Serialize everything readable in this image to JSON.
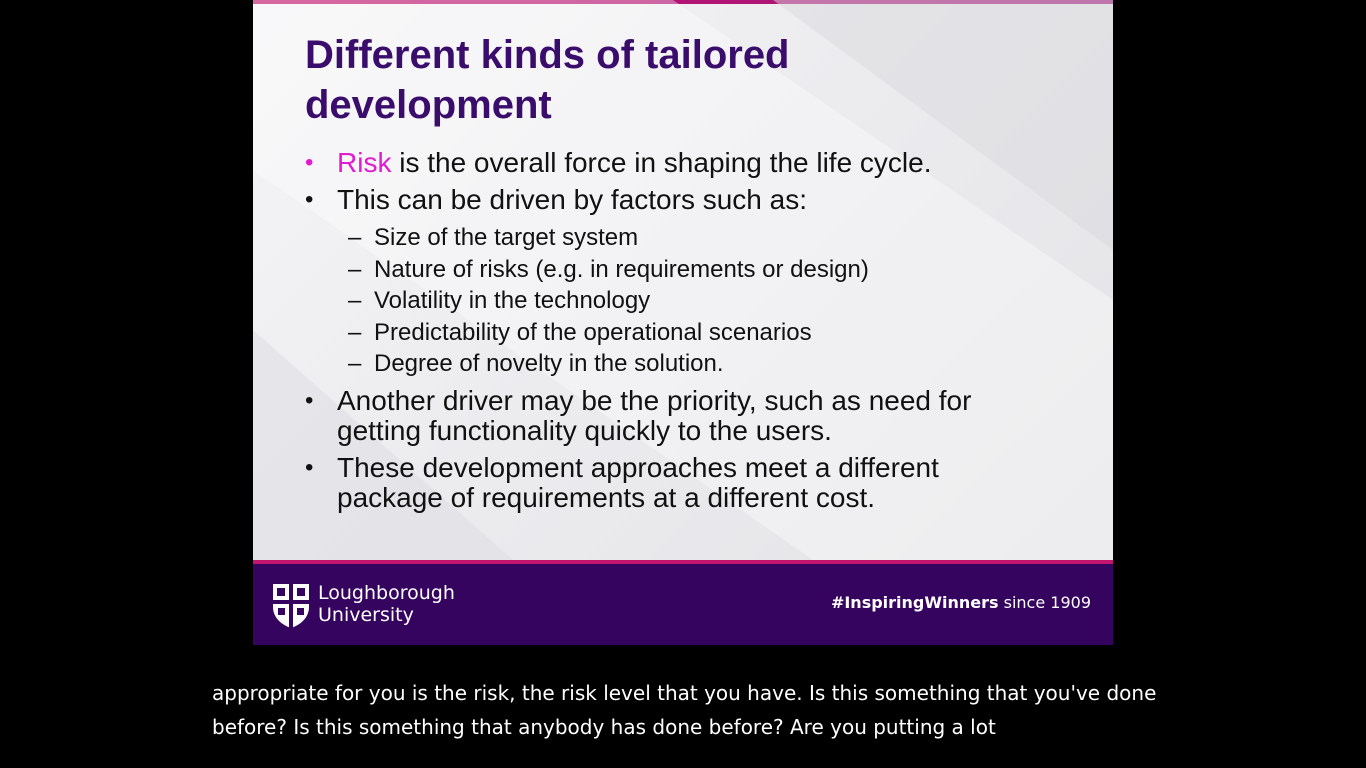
{
  "slide": {
    "title_line1": "Different kinds of tailored",
    "title_line2": "development",
    "bullet1": {
      "highlight": "Risk",
      "rest": " is the overall force in shaping the life cycle."
    },
    "bullet2": "This can be driven by factors such as:",
    "sub_items": [
      "Size of the target system",
      "Nature of risks (e.g. in requirements or design)",
      "Volatility in the technology",
      "Predictability of the operational scenarios",
      "Degree of novelty in the solution."
    ],
    "bullet3_line1": "Another driver may be the priority, such as need for",
    "bullet3_line2": "getting functionality quickly to the users.",
    "bullet4_line1": "These development approaches meet a different",
    "bullet4_line2": "package of requirements at a different cost."
  },
  "footer": {
    "university_line1": "Loughborough",
    "university_line2": "University",
    "tagline_bold": "#InspiringWinners",
    "tagline_rest": " since 1909"
  },
  "caption": {
    "line1": "appropriate for you is the risk, the risk level that you have. Is this something that you've done",
    "line2": "before? Is this something that anybody has done before? Are you putting a lot"
  },
  "colors": {
    "title": "#3a0c6b",
    "accent": "#e01bd0",
    "footer_bg": "#35045f",
    "footer_line": "#c2166e",
    "background": "#000000"
  }
}
